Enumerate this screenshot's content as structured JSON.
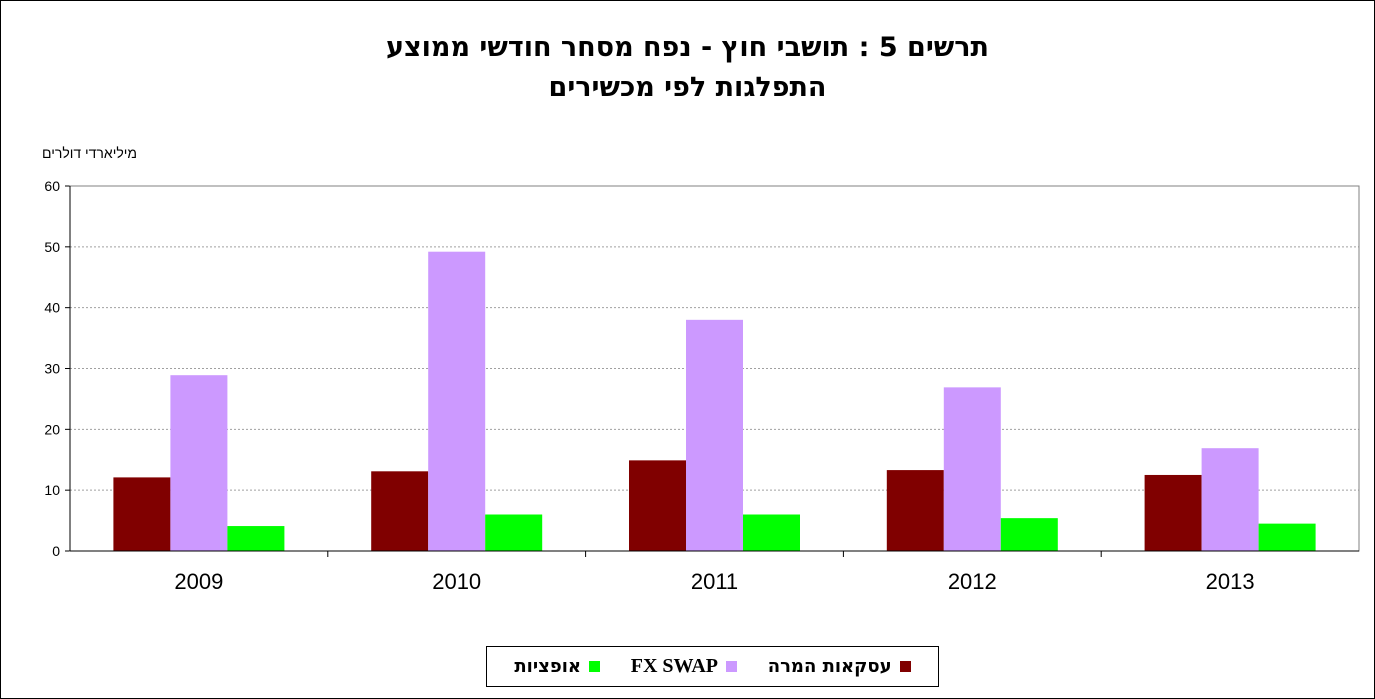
{
  "chart_data": {
    "type": "bar",
    "title_line1": "תרשים 5 : תושבי חוץ - נפח מסחר חודשי ממוצע",
    "title_line2": "התפלגות לפי מכשירים",
    "ylabel": "מיליארדי דולרים",
    "categories": [
      "2009",
      "2010",
      "2011",
      "2012",
      "2013"
    ],
    "ylim": [
      0,
      60
    ],
    "yticks": [
      0,
      10,
      20,
      30,
      40,
      50,
      60
    ],
    "grid": true,
    "legend_position": "bottom",
    "series": [
      {
        "name": "עסקאות המרה",
        "color": "#800000",
        "values": [
          12.1,
          13.1,
          14.9,
          13.3,
          12.5
        ]
      },
      {
        "name": "FX SWAP",
        "color": "#CC99FF",
        "values": [
          28.9,
          49.2,
          38.0,
          26.9,
          16.9
        ]
      },
      {
        "name": "אופציות",
        "color": "#00FF00",
        "values": [
          4.1,
          6.0,
          6.0,
          5.4,
          4.5
        ]
      }
    ]
  }
}
